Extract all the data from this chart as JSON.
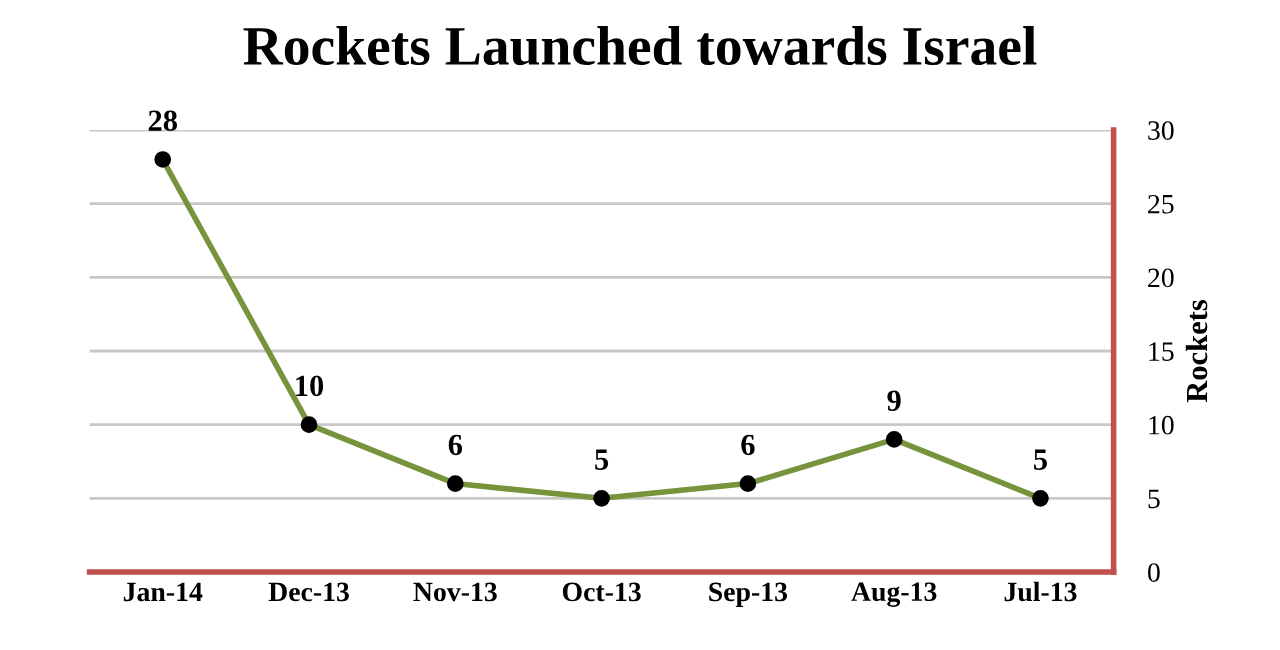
{
  "chart_data": {
    "type": "line",
    "title": "Rockets Launched towards Israel",
    "ylabel": "Rockets",
    "categories": [
      "Jan-14",
      "Dec-13",
      "Nov-13",
      "Oct-13",
      "Sep-13",
      "Aug-13",
      "Jul-13"
    ],
    "series": [
      {
        "color": "#77933c",
        "values": [
          28,
          10,
          6,
          5,
          6,
          9,
          5
        ]
      }
    ],
    "ylim": [
      0,
      30
    ],
    "yticks": [
      0,
      5,
      10,
      15,
      20,
      25,
      30
    ],
    "grid": "y",
    "marker": "circle",
    "line_style": "solid",
    "data_labels": true
  }
}
